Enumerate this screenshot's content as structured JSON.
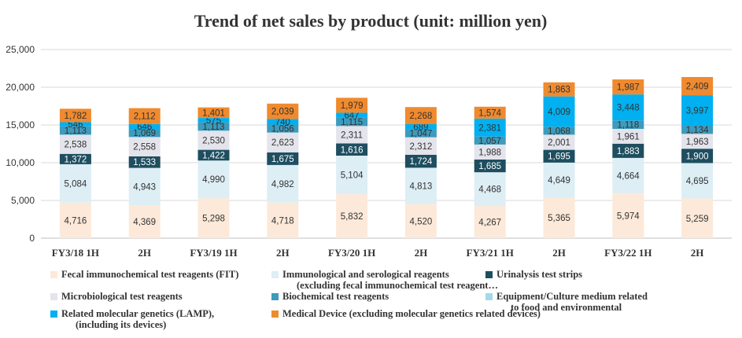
{
  "chart_data": {
    "type": "bar",
    "stacked": true,
    "title": "Trend of net sales by product (unit: million yen)",
    "xlabel": "",
    "ylabel": "",
    "ylim": [
      0,
      25000
    ],
    "yticks": [
      "0",
      "5,000",
      "10,000",
      "15,000",
      "20,000",
      "25,000"
    ],
    "grid": true,
    "legend_position": "bottom",
    "categories": [
      "FY3/18 1H",
      "2H",
      "FY3/19 1H",
      "2H",
      "FY3/20 1H",
      "2H",
      "FY3/21 1H",
      "2H",
      "FY3/22 1H",
      "2H"
    ],
    "series": [
      {
        "name": "Fecal immunochemical test reagents (FIT)",
        "color": "#fde9d9",
        "label_color": "#333333",
        "values": [
          4716,
          4369,
          5298,
          4718,
          5832,
          4520,
          4267,
          5365,
          5974,
          5259
        ],
        "labels": [
          "4,716",
          "4,369",
          "5,298",
          "4,718",
          "5,832",
          "4,520",
          "4,267",
          "5,365",
          "5,974",
          "5,259"
        ]
      },
      {
        "name": "Immunological and serological reagents (excluding fecal immunochemical test reagent…",
        "color": "#ddeef5",
        "label_color": "#333333",
        "values": [
          5084,
          4943,
          4990,
          4982,
          5104,
          4813,
          4468,
          4649,
          4664,
          4695
        ],
        "labels": [
          "5,084",
          "4,943",
          "4,990",
          "4,982",
          "5,104",
          "4,813",
          "4,468",
          "4,649",
          "4,664",
          "4,695"
        ]
      },
      {
        "name": "Urinalysis test strips",
        "color": "#1e4e5f",
        "label_color": "#ffffff",
        "values": [
          1372,
          1533,
          1422,
          1675,
          1616,
          1724,
          1685,
          1695,
          1883,
          1900
        ],
        "labels": [
          "1,372",
          "1,533",
          "1,422",
          "1,675",
          "1,616",
          "1,724",
          "1,685",
          "1,695",
          "1,883",
          "1,900"
        ]
      },
      {
        "name": "Microbiological test reagents",
        "color": "#e4e4ec",
        "label_color": "#333333",
        "values": [
          2538,
          2558,
          2530,
          2623,
          2311,
          2312,
          1988,
          2001,
          1961,
          1963
        ],
        "labels": [
          "2,538",
          "2,558",
          "2,530",
          "2,623",
          "2,311",
          "2,312",
          "1,988",
          "2,001",
          "1,961",
          "1,963"
        ]
      },
      {
        "name": "Biochemical test reagents",
        "color": "#3d9bbd",
        "label_color": "#333333",
        "values": [
          1113,
          1069,
          1113,
          1056,
          1115,
          1047,
          1057,
          1068,
          1118,
          1134
        ],
        "labels": [
          "1,113",
          "1,069",
          "1,113",
          "1,056",
          "1,115",
          "1,047",
          "1,057",
          "1,068",
          "1,118",
          "1,134"
        ]
      },
      {
        "name": "Equipment/Culture medium related to food and environmental",
        "color": "#a6d8ea",
        "label_color": "#333333",
        "values": [
          0,
          0,
          0,
          0,
          0,
          0,
          0,
          0,
          0,
          0
        ],
        "labels": [
          "",
          "",
          "",
          "",
          "",
          "",
          "",
          "",
          "",
          ""
        ]
      },
      {
        "name": "Related molecular genetics (LAMP), (including its devices)",
        "color": "#00b0f0",
        "label_color": "#333333",
        "values": [
          546,
          646,
          575,
          740,
          647,
          689,
          2381,
          4009,
          3448,
          3997
        ],
        "labels": [
          "546",
          "646",
          "575",
          "740",
          "647",
          "689",
          "2,381",
          "4,009",
          "3,448",
          "3,997"
        ]
      },
      {
        "name": "Medical Device (excluding molecular genetics related devices)",
        "color": "#f08a2e",
        "label_color": "#333333",
        "values": [
          1782,
          2112,
          1401,
          2039,
          1979,
          2268,
          1574,
          1863,
          1987,
          2409
        ],
        "labels": [
          "1,782",
          "2,112",
          "1,401",
          "2,039",
          "1,979",
          "2,268",
          "1,574",
          "1,863",
          "1,987",
          "2,409"
        ]
      }
    ],
    "legend": [
      [
        "Fecal immunochemical test reagents (FIT)"
      ],
      [
        "Immunological and serological reagents",
        "(excluding fecal immunochemical test reagent…"
      ],
      [
        "Urinalysis test strips"
      ],
      [
        "Microbiological test reagents"
      ],
      [
        "Biochemical test reagents"
      ],
      [
        "Equipment/Culture medium related",
        "to food and environmental"
      ],
      [
        "Related molecular genetics (LAMP),",
        "(including its devices)"
      ],
      [
        "Medical Device (excluding molecular genetics related devices)"
      ]
    ]
  }
}
